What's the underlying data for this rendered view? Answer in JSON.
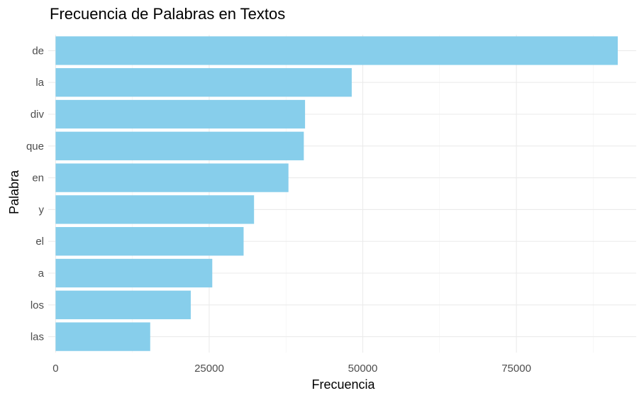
{
  "chart_data": {
    "type": "bar",
    "orientation": "horizontal",
    "title": "Frecuencia de Palabras en Textos",
    "xlabel": "Frecuencia",
    "ylabel": "Palabra",
    "categories": [
      "de",
      "la",
      "div",
      "que",
      "en",
      "y",
      "el",
      "a",
      "los",
      "las"
    ],
    "values": [
      91500,
      48200,
      40600,
      40400,
      37900,
      32300,
      30600,
      25500,
      22000,
      15400
    ],
    "x_ticks": [
      0,
      25000,
      50000,
      75000
    ],
    "x_tick_labels": [
      "0",
      "25000",
      "50000",
      "75000"
    ],
    "xlim": [
      -1200,
      94500
    ],
    "bar_color": "#87CEEB",
    "grid": true,
    "legend": "none"
  }
}
